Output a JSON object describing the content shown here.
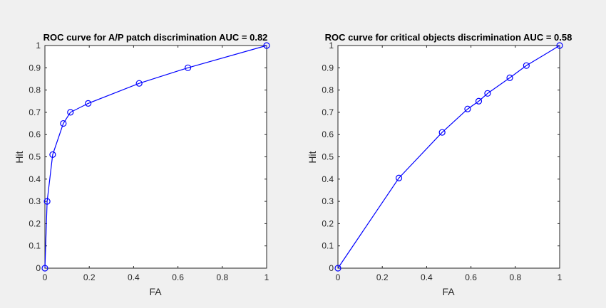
{
  "chart_data": [
    {
      "type": "line",
      "title": "ROC curve for A/P patch discrimination AUC = 0.82",
      "xlabel": "FA",
      "ylabel": "Hit",
      "xlim": [
        0,
        1
      ],
      "ylim": [
        0,
        1
      ],
      "x_ticks": [
        "0",
        "0.2",
        "0.4",
        "0.6",
        "0.8",
        "1"
      ],
      "y_ticks": [
        "0",
        "0.1",
        "0.2",
        "0.3",
        "0.4",
        "0.5",
        "0.6",
        "0.7",
        "0.8",
        "0.9",
        "1"
      ],
      "grid": false,
      "series": [
        {
          "color": "#0000ff",
          "marker": "circle",
          "x": [
            0,
            0.01,
            0.035,
            0.083,
            0.115,
            0.195,
            0.425,
            0.645,
            1.0
          ],
          "y": [
            0.0,
            0.3,
            0.51,
            0.65,
            0.7,
            0.74,
            0.83,
            0.9,
            1.0
          ]
        }
      ]
    },
    {
      "type": "line",
      "title": "ROC curve for critical objects discrimination AUC = 0.58",
      "xlabel": "FA",
      "ylabel": "Hit",
      "xlim": [
        0,
        1
      ],
      "ylim": [
        0,
        1
      ],
      "x_ticks": [
        "0",
        "0.2",
        "0.4",
        "0.6",
        "0.8",
        "1"
      ],
      "y_ticks": [
        "0",
        "0.1",
        "0.2",
        "0.3",
        "0.4",
        "0.5",
        "0.6",
        "0.7",
        "0.8",
        "0.9",
        "1"
      ],
      "grid": false,
      "series": [
        {
          "color": "#0000ff",
          "marker": "circle",
          "x": [
            0,
            0.275,
            0.47,
            0.585,
            0.635,
            0.675,
            0.775,
            0.85,
            1.0
          ],
          "y": [
            0.0,
            0.405,
            0.61,
            0.715,
            0.75,
            0.785,
            0.855,
            0.91,
            1.0
          ]
        }
      ]
    }
  ]
}
